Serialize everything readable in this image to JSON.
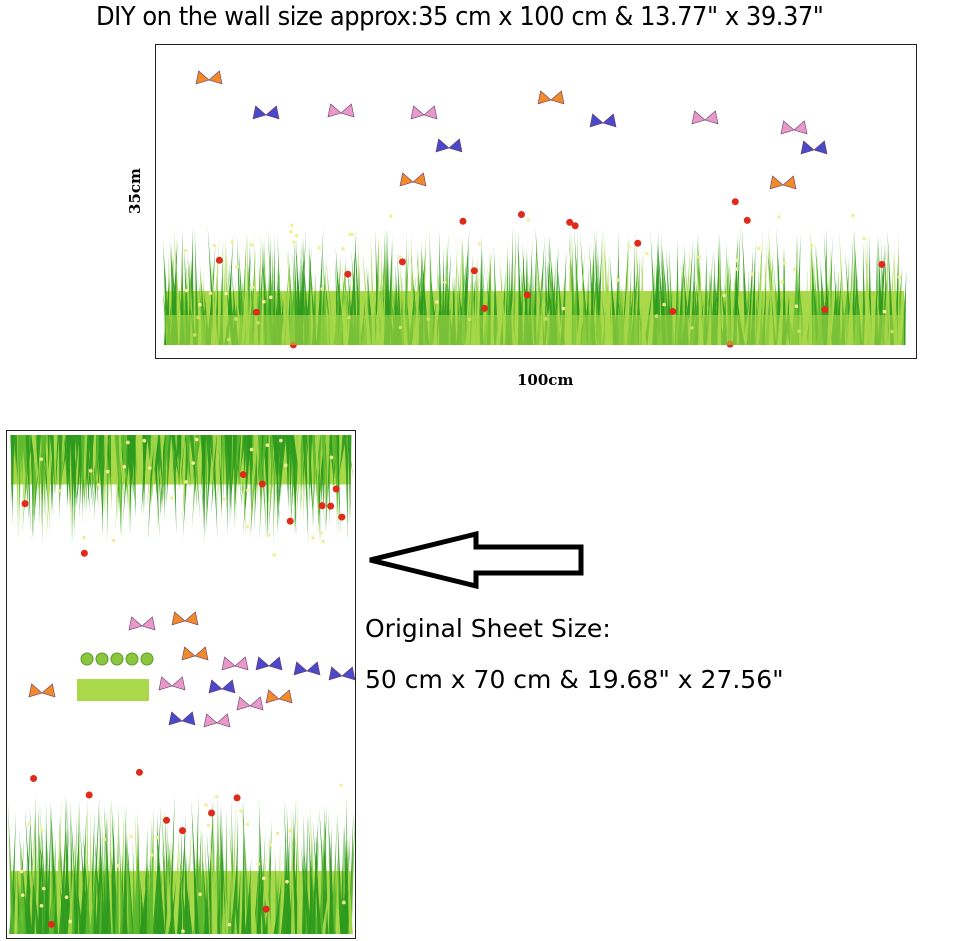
{
  "title": "DIY on the wall size approx:35 cm x 100 cm & 13.77\" x 39.37\"",
  "wall_preview": {
    "height_label": "35cm",
    "width_label": "100cm"
  },
  "sheet": {
    "label": "Original Sheet Size:",
    "size": "50 cm x 70 cm & 19.68\" x 27.56\""
  },
  "colors": {
    "grass_dark": "#2e9a1e",
    "grass_light": "#a9d94a",
    "flower_red": "#e02a1a",
    "flower_yellow": "#f3ef9a",
    "butterfly_orange": "#f08a2a",
    "butterfly_blue": "#4a4ac8",
    "butterfly_pink": "#e79ac8"
  },
  "icons": [
    "arrow-left-icon",
    "butterfly-icon",
    "flower-icon"
  ]
}
